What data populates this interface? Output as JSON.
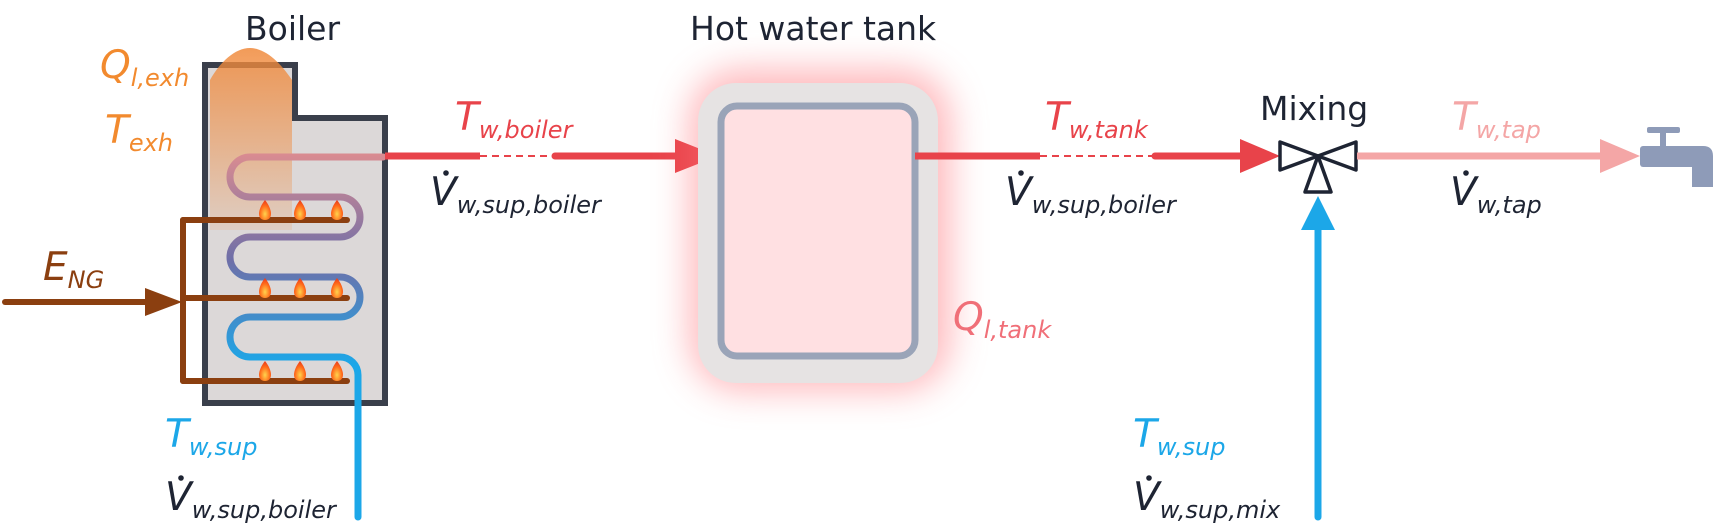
{
  "headings": {
    "boiler": "Boiler",
    "tank": "Hot water tank",
    "mixing": "Mixing"
  },
  "labels": {
    "q_exh": {
      "main": "Q",
      "sub": "l,exh"
    },
    "t_exh": {
      "main": "T",
      "sub": "exh"
    },
    "e_ng": {
      "main": "E",
      "sub": "NG"
    },
    "t_w_sup_boiler": {
      "main": "T",
      "sub": "w,sup"
    },
    "v_w_sup_boiler_bottom": {
      "main": "V",
      "sub": "w,sup,boiler"
    },
    "t_w_boiler": {
      "main": "T",
      "sub": "w,boiler"
    },
    "v_w_sup_boiler_mid": {
      "main": "V",
      "sub": "w,sup,boiler"
    },
    "q_tank": {
      "main": "Q",
      "sub": "l,tank"
    },
    "t_w_tank": {
      "main": "T",
      "sub": "w,tank"
    },
    "v_w_sup_boiler_right": {
      "main": "V",
      "sub": "w,sup,boiler"
    },
    "t_w_tap": {
      "main": "T",
      "sub": "w,tap"
    },
    "v_w_tap": {
      "main": "V",
      "sub": "w,tap"
    },
    "t_w_sup_mix": {
      "main": "T",
      "sub": "w,sup"
    },
    "v_w_sup_mix": {
      "main": "V",
      "sub": "w,sup,mix"
    }
  },
  "colors": {
    "hot": "#e8434a",
    "tap": "#f4a6a6",
    "cold": "#1ca7e8",
    "gas": "#8b3f10",
    "exhaust": "#f28a2e",
    "tank_loss": "#f06f78",
    "text": "#1e2433"
  },
  "icons": [
    "flame-icon",
    "faucet-icon",
    "mixing-valve-icon"
  ]
}
